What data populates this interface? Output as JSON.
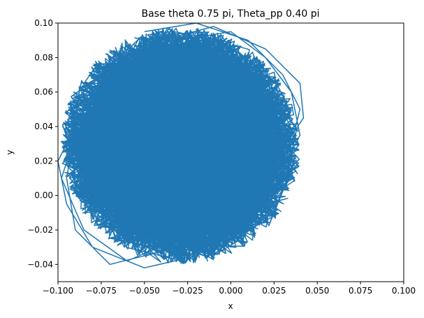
{
  "chart_data": {
    "type": "line",
    "title": "Base theta 0.75 pi, Theta_pp 0.40 pi",
    "xlabel": "x",
    "ylabel": "y",
    "xlim": [
      -0.1,
      0.1
    ],
    "ylim": [
      -0.05,
      0.1
    ],
    "xticks": [
      -0.1,
      -0.075,
      -0.05,
      -0.025,
      0.0,
      0.025,
      0.05,
      0.075,
      0.1
    ],
    "xtick_labels": [
      "−0.100",
      "−0.075",
      "−0.050",
      "−0.025",
      "0.000",
      "0.025",
      "0.050",
      "0.075",
      "0.100"
    ],
    "yticks": [
      -0.04,
      -0.02,
      0.0,
      0.02,
      0.04,
      0.06,
      0.08,
      0.1
    ],
    "ytick_labels": [
      "−0.04",
      "−0.02",
      "0.00",
      "0.02",
      "0.04",
      "0.06",
      "0.08",
      "0.10"
    ],
    "grid": false,
    "series": [
      {
        "color": "#1f77b4",
        "shape": "dense chaotic trajectory filling an elliptical region",
        "x": [
          -0.05,
          -0.02,
          0.01,
          0.03,
          0.04,
          0.035,
          0.01,
          -0.03,
          -0.07,
          -0.09,
          -0.095,
          -0.09,
          -0.06,
          -0.03,
          0.0,
          0.02,
          0.035,
          0.04,
          0.03,
          0.005,
          -0.02,
          -0.05,
          -0.08,
          -0.095,
          -0.1,
          -0.085,
          -0.06,
          -0.04,
          -0.01,
          0.02,
          0.04,
          0.042,
          0.025,
          0.0,
          -0.03,
          -0.06,
          -0.085,
          -0.098,
          -0.09,
          -0.07,
          -0.045
        ],
        "y": [
          0.095,
          0.1,
          0.09,
          0.07,
          0.05,
          0.03,
          0.0,
          -0.03,
          -0.04,
          -0.02,
          0.01,
          0.04,
          0.07,
          0.09,
          0.095,
          0.08,
          0.06,
          0.035,
          0.015,
          -0.015,
          -0.035,
          -0.042,
          -0.03,
          -0.005,
          0.02,
          0.05,
          0.075,
          0.09,
          0.098,
          0.085,
          0.065,
          0.045,
          0.02,
          -0.005,
          -0.025,
          -0.038,
          -0.02,
          0.01,
          0.035,
          0.06,
          0.08
        ]
      }
    ]
  }
}
